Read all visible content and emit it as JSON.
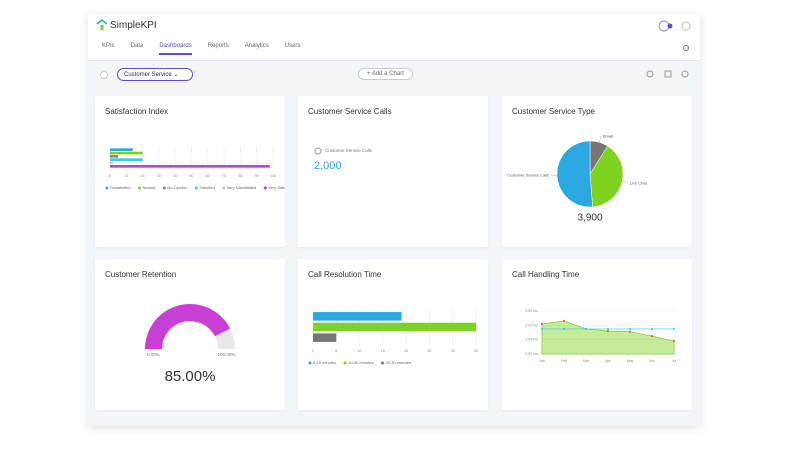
{
  "header": {
    "brand": "SimpleKPI"
  },
  "nav": {
    "items": [
      "KPIs",
      "Data",
      "Dashboards",
      "Reports",
      "Analytics",
      "Users"
    ],
    "active": 2
  },
  "toolbar": {
    "dashboard": "Customer Service",
    "add_button": "Add a Chart"
  },
  "widgets": [
    {
      "title": "Satisfaction Index",
      "chart": {
        "type": "hbar",
        "xlim": [
          0,
          100
        ],
        "xticks": [
          0,
          10,
          20,
          30,
          40,
          50,
          60,
          70,
          80,
          90,
          100
        ],
        "series": [
          {
            "name": "Dissatisfied",
            "color": "#2aa8e0",
            "values": [
              14
            ]
          },
          {
            "name": "Neutral",
            "color": "#7ed321",
            "values": [
              20
            ]
          },
          {
            "name": "No Opinion",
            "color": "#8a8a8a",
            "values": [
              5
            ]
          },
          {
            "name": "Satisfied",
            "color": "#3cc8e8",
            "values": [
              20
            ]
          },
          {
            "name": "Very Dissatisfied",
            "color": "#c8c8c8",
            "values": [
              2
            ]
          },
          {
            "name": "Very Satisfied",
            "color": "#c93fd6",
            "values": [
              98
            ]
          }
        ]
      }
    },
    {
      "title": "Customer Service Calls",
      "metric": {
        "label": "Customer Service Calls",
        "value": "2,000",
        "color": "#2aa8e0"
      }
    },
    {
      "title": "Customer Service Type",
      "chart": {
        "type": "pie",
        "categories": [
          "Email",
          "Live Chat",
          "Customer Service Calls"
        ],
        "values": [
          350,
          1550,
          2000
        ],
        "colors": [
          "#777777",
          "#7ed321",
          "#2aa8e0"
        ],
        "total": "3,900"
      }
    },
    {
      "title": "Customer Retention",
      "chart": {
        "type": "gauge",
        "value": 85,
        "value_label": "85.00%",
        "color": "#c93fd6",
        "ticks": [
          {
            "value": 0,
            "label": "0.00%"
          },
          {
            "value": 100,
            "label": "100.00%"
          }
        ]
      }
    },
    {
      "title": "Call Resolution Time",
      "chart": {
        "type": "hbar",
        "xlim": [
          0,
          35
        ],
        "xticks": [
          0,
          5,
          10,
          15,
          20,
          25,
          30,
          35
        ],
        "series": [
          {
            "name": "0-10 minutes",
            "color": "#2aa8e0",
            "values": [
              19
            ]
          },
          {
            "name": "10-20 minutes",
            "color": "#7ed321",
            "values": [
              35
            ]
          },
          {
            "name": "20-30 minutes",
            "color": "#777777",
            "values": [
              5
            ]
          }
        ]
      }
    },
    {
      "title": "Call Handling Time",
      "chart": {
        "type": "area",
        "categories": [
          "Jan",
          "Feb",
          "Mar",
          "Apr",
          "May",
          "Jun",
          "Jul"
        ],
        "ylim": [
          0,
          3
        ],
        "yticks": [
          {
            "value": 0,
            "label": "0.00 hrs"
          },
          {
            "value": 1,
            "label": "1.00 hrs"
          },
          {
            "value": 2,
            "label": "2.00 hrs"
          },
          {
            "value": 3,
            "label": "3.00 hrs"
          }
        ],
        "series": [
          {
            "color": "#7ed321",
            "values": [
              2.1,
              2.3,
              1.75,
              1.6,
              1.55,
              1.25,
              0.9
            ]
          },
          {
            "color": "#3cc8e8",
            "values": [
              1.75,
              1.75,
              1.75,
              1.75,
              1.75,
              1.75,
              1.75
            ]
          }
        ]
      }
    }
  ]
}
